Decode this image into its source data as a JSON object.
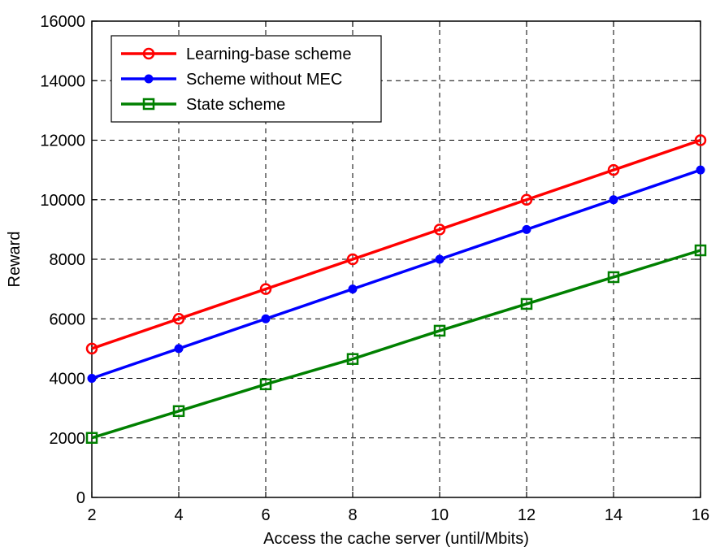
{
  "chart_data": {
    "type": "line",
    "xlabel": "Access the cache server (until/Mbits)",
    "ylabel": "Reward",
    "x": [
      2,
      4,
      6,
      8,
      10,
      12,
      14,
      16
    ],
    "xlim": [
      2,
      16
    ],
    "ylim": [
      0,
      16000
    ],
    "xticks": [
      "2",
      "4",
      "6",
      "8",
      "10",
      "12",
      "14",
      "16"
    ],
    "yticks": [
      "0",
      "2000",
      "4000",
      "6000",
      "8000",
      "10000",
      "12000",
      "14000",
      "16000"
    ],
    "grid": true,
    "legend_position": "top-left",
    "series": [
      {
        "name": "Learning-base scheme",
        "color": "#ff0000",
        "marker": "circle",
        "values": [
          5000,
          6000,
          7000,
          8000,
          9000,
          10000,
          11000,
          12000
        ]
      },
      {
        "name": "Scheme without MEC",
        "color": "#0000ff",
        "marker": "filled-circle",
        "values": [
          4000,
          5000,
          6000,
          7000,
          8000,
          9000,
          10000,
          11000
        ]
      },
      {
        "name": "State scheme",
        "color": "#008000",
        "marker": "square",
        "values": [
          2000,
          2900,
          3800,
          4650,
          5600,
          6500,
          7400,
          8300
        ]
      }
    ]
  }
}
